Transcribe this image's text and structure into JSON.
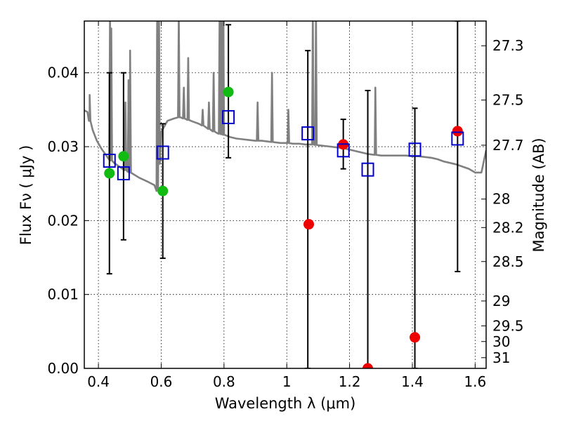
{
  "chart_data": {
    "type": "scatter",
    "xlabel": "Wavelength  λ (μm)",
    "ylabel": "Flux  Fν  ( μJy )",
    "ylabel_right": "Magnitude (AB)",
    "xlim": [
      0.355,
      1.635
    ],
    "ylim": [
      0.0,
      0.047
    ],
    "x_ticks": [
      0.4,
      0.6,
      0.8,
      1.0,
      1.2,
      1.4,
      1.6
    ],
    "x_tick_labels": [
      "0.4",
      "0.6",
      "0.8",
      "1",
      "1.2",
      "1.4",
      "1.6"
    ],
    "y_ticks": [
      0.0,
      0.01,
      0.02,
      0.03,
      0.04
    ],
    "y_tick_labels": [
      "0.00",
      "0.01",
      "0.02",
      "0.03",
      "0.04"
    ],
    "mag_ticks": [
      27.3,
      27.5,
      27.7,
      28,
      28.2,
      28.5,
      29,
      29.5,
      30,
      31
    ],
    "mag_tick_labels": [
      "27.3",
      "27.5",
      "27.7",
      "28",
      "28.2",
      "28.5",
      "29",
      "29.5",
      "30",
      "31"
    ],
    "grid": true,
    "colors": {
      "model": "#808080",
      "green": "#11bb11",
      "red": "#ee0000",
      "box": "#0000cc",
      "errorbar": "#000000"
    },
    "model_spectrum": [
      [
        0.355,
        0.0349
      ],
      [
        0.365,
        0.0347
      ],
      [
        0.372,
        0.0335
      ],
      [
        0.382,
        0.0322
      ],
      [
        0.395,
        0.0308
      ],
      [
        0.41,
        0.0297
      ],
      [
        0.43,
        0.0285
      ],
      [
        0.45,
        0.0278
      ],
      [
        0.47,
        0.0272
      ],
      [
        0.5,
        0.0265
      ],
      [
        0.53,
        0.0258
      ],
      [
        0.56,
        0.0252
      ],
      [
        0.578,
        0.0248
      ],
      [
        0.585,
        0.024
      ],
      [
        0.59,
        0.0242
      ],
      [
        0.595,
        0.03
      ],
      [
        0.6,
        0.032
      ],
      [
        0.62,
        0.0335
      ],
      [
        0.64,
        0.0338
      ],
      [
        0.66,
        0.034
      ],
      [
        0.68,
        0.0337
      ],
      [
        0.7,
        0.0334
      ],
      [
        0.72,
        0.0331
      ],
      [
        0.74,
        0.0327
      ],
      [
        0.76,
        0.0322
      ],
      [
        0.78,
        0.0318
      ],
      [
        0.8,
        0.0316
      ],
      [
        0.82,
        0.0313
      ],
      [
        0.84,
        0.0311
      ],
      [
        0.86,
        0.031
      ],
      [
        0.88,
        0.0309
      ],
      [
        0.9,
        0.0308
      ],
      [
        0.92,
        0.0308
      ],
      [
        0.94,
        0.0307
      ],
      [
        0.96,
        0.0306
      ],
      [
        0.98,
        0.0305
      ],
      [
        1.0,
        0.0305
      ],
      [
        1.02,
        0.0304
      ],
      [
        1.04,
        0.0304
      ],
      [
        1.06,
        0.0303
      ],
      [
        1.08,
        0.0303
      ],
      [
        1.1,
        0.0302
      ],
      [
        1.12,
        0.0301
      ],
      [
        1.14,
        0.03
      ],
      [
        1.16,
        0.0299
      ],
      [
        1.18,
        0.0298
      ],
      [
        1.2,
        0.0296
      ],
      [
        1.22,
        0.0294
      ],
      [
        1.24,
        0.0292
      ],
      [
        1.26,
        0.029
      ],
      [
        1.28,
        0.0289
      ],
      [
        1.3,
        0.0288
      ],
      [
        1.32,
        0.0288
      ],
      [
        1.34,
        0.0288
      ],
      [
        1.36,
        0.0288
      ],
      [
        1.38,
        0.0288
      ],
      [
        1.4,
        0.0287
      ],
      [
        1.42,
        0.0287
      ],
      [
        1.44,
        0.0286
      ],
      [
        1.46,
        0.0285
      ],
      [
        1.48,
        0.0283
      ],
      [
        1.5,
        0.028
      ],
      [
        1.52,
        0.0278
      ],
      [
        1.54,
        0.0276
      ],
      [
        1.56,
        0.0273
      ],
      [
        1.58,
        0.027
      ],
      [
        1.6,
        0.0265
      ],
      [
        1.62,
        0.0265
      ],
      [
        1.635,
        0.0295
      ]
    ],
    "emission_lines": [
      {
        "x": 0.372,
        "peak": 0.037
      },
      {
        "x": 0.437,
        "peak": 0.048
      },
      {
        "x": 0.441,
        "peak": 0.046
      },
      {
        "x": 0.486,
        "peak": 0.036
      },
      {
        "x": 0.496,
        "peak": 0.039
      },
      {
        "x": 0.501,
        "peak": 0.043
      },
      {
        "x": 0.587,
        "peak": 0.048
      },
      {
        "x": 0.593,
        "peak": 0.048
      },
      {
        "x": 0.656,
        "peak": 0.048
      },
      {
        "x": 0.672,
        "peak": 0.038
      },
      {
        "x": 0.686,
        "peak": 0.042
      },
      {
        "x": 0.732,
        "peak": 0.035
      },
      {
        "x": 0.752,
        "peak": 0.036
      },
      {
        "x": 0.767,
        "peak": 0.04
      },
      {
        "x": 0.786,
        "peak": 0.048
      },
      {
        "x": 0.792,
        "peak": 0.048
      },
      {
        "x": 0.798,
        "peak": 0.048
      },
      {
        "x": 0.907,
        "peak": 0.036
      },
      {
        "x": 0.953,
        "peak": 0.04
      },
      {
        "x": 1.005,
        "peak": 0.035
      },
      {
        "x": 1.083,
        "peak": 0.048
      },
      {
        "x": 1.093,
        "peak": 0.048
      },
      {
        "x": 1.282,
        "peak": 0.038
      }
    ],
    "green_points": [
      {
        "x": 0.435,
        "y": 0.0264
      },
      {
        "x": 0.48,
        "y": 0.0287
      },
      {
        "x": 0.605,
        "y": 0.024
      },
      {
        "x": 0.814,
        "y": 0.0374
      }
    ],
    "red_points": [
      {
        "x": 1.07,
        "y": 0.0195
      },
      {
        "x": 1.18,
        "y": 0.0303
      },
      {
        "x": 1.258,
        "y": 0.0
      },
      {
        "x": 1.408,
        "y": 0.0042
      },
      {
        "x": 1.544,
        "y": 0.0321
      }
    ],
    "box_points": [
      {
        "x": 0.435,
        "y": 0.0281,
        "err": [
          0.0128,
          0.04
        ]
      },
      {
        "x": 0.48,
        "y": 0.0264,
        "err": [
          0.0174,
          0.04
        ]
      },
      {
        "x": 0.605,
        "y": 0.0292,
        "err": [
          0.0149,
          0.0331
        ]
      },
      {
        "x": 0.814,
        "y": 0.034,
        "err": [
          0.0285,
          0.0465
        ]
      },
      {
        "x": 1.067,
        "y": 0.0318,
        "err": [
          0.0,
          0.043
        ]
      },
      {
        "x": 1.18,
        "y": 0.0295,
        "err": [
          0.027,
          0.0337
        ]
      },
      {
        "x": 1.258,
        "y": 0.0269,
        "err": [
          0.0,
          0.0376
        ]
      },
      {
        "x": 1.408,
        "y": 0.0296,
        "err": [
          0.0,
          0.0352
        ]
      },
      {
        "x": 1.544,
        "y": 0.0311,
        "err": [
          0.0131,
          0.047
        ]
      }
    ]
  }
}
